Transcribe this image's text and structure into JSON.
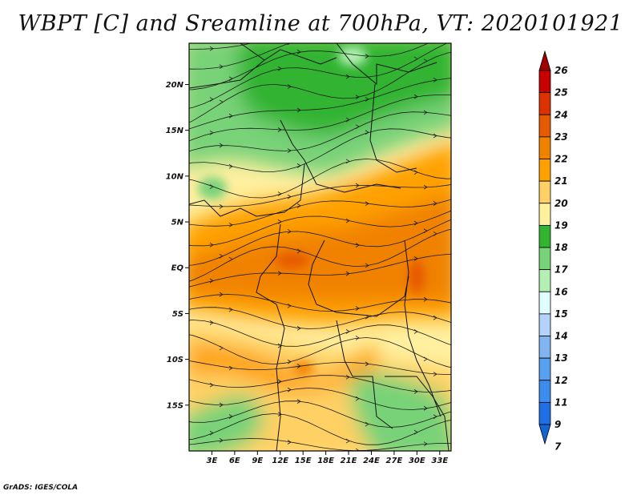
{
  "title": "WBPT [C] and Sreamline at 700hPa, VT: 2020101921",
  "credit": "GrADS: IGES/COLA",
  "map": {
    "lat_labels": [
      {
        "label": "20N",
        "lat": 20
      },
      {
        "label": "15N",
        "lat": 15
      },
      {
        "label": "10N",
        "lat": 10
      },
      {
        "label": "5N",
        "lat": 5
      },
      {
        "label": "EQ",
        "lat": 0
      },
      {
        "label": "5S",
        "lat": -5
      },
      {
        "label": "10S",
        "lat": -10
      },
      {
        "label": "15S",
        "lat": -15
      }
    ],
    "lon_labels": [
      {
        "label": "3E",
        "lon": 3
      },
      {
        "label": "6E",
        "lon": 6
      },
      {
        "label": "9E",
        "lon": 9
      },
      {
        "label": "12E",
        "lon": 12
      },
      {
        "label": "15E",
        "lon": 15
      },
      {
        "label": "18E",
        "lon": 18
      },
      {
        "label": "21E",
        "lon": 21
      },
      {
        "label": "24E",
        "lon": 24
      },
      {
        "label": "27E",
        "lon": 27
      },
      {
        "label": "30E",
        "lon": 30
      },
      {
        "label": "33E",
        "lon": 33
      }
    ],
    "lon_range": [
      0,
      34.5
    ],
    "lat_range": [
      -20,
      24.5
    ]
  },
  "colorbar": {
    "colors": [
      "#1464d2",
      "#1e6ee6",
      "#3c8cf0",
      "#5aa0f0",
      "#82b4f0",
      "#b4d2fa",
      "#e1ffff",
      "#b4f0b4",
      "#78d278",
      "#32b432",
      "#fff0a0",
      "#ffd064",
      "#ffa000",
      "#f08200",
      "#e65a00",
      "#dc3200",
      "#c80000",
      "#a00000"
    ],
    "labels": [
      "7",
      "9",
      "11",
      "12",
      "13",
      "14",
      "15",
      "16",
      "17",
      "18",
      "19",
      "20",
      "21",
      "22",
      "23",
      "24",
      "25",
      "26"
    ]
  }
}
